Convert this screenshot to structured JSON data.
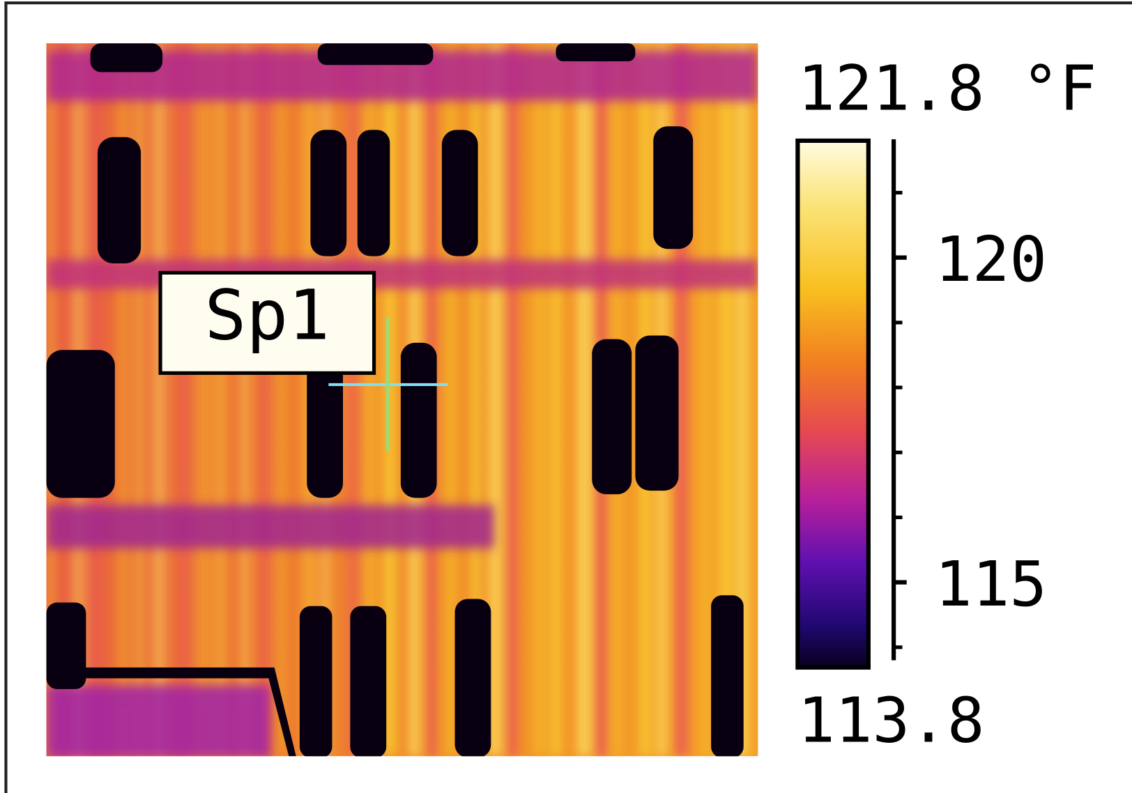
{
  "spot": {
    "label": "Sp1"
  },
  "scale": {
    "max": {
      "value": 121.8,
      "label": "121.8 °F"
    },
    "min": 113.8,
    "labeled_ticks": [
      120,
      115
    ],
    "minor_ticks": [
      121,
      119,
      118,
      117,
      116,
      114
    ]
  }
}
